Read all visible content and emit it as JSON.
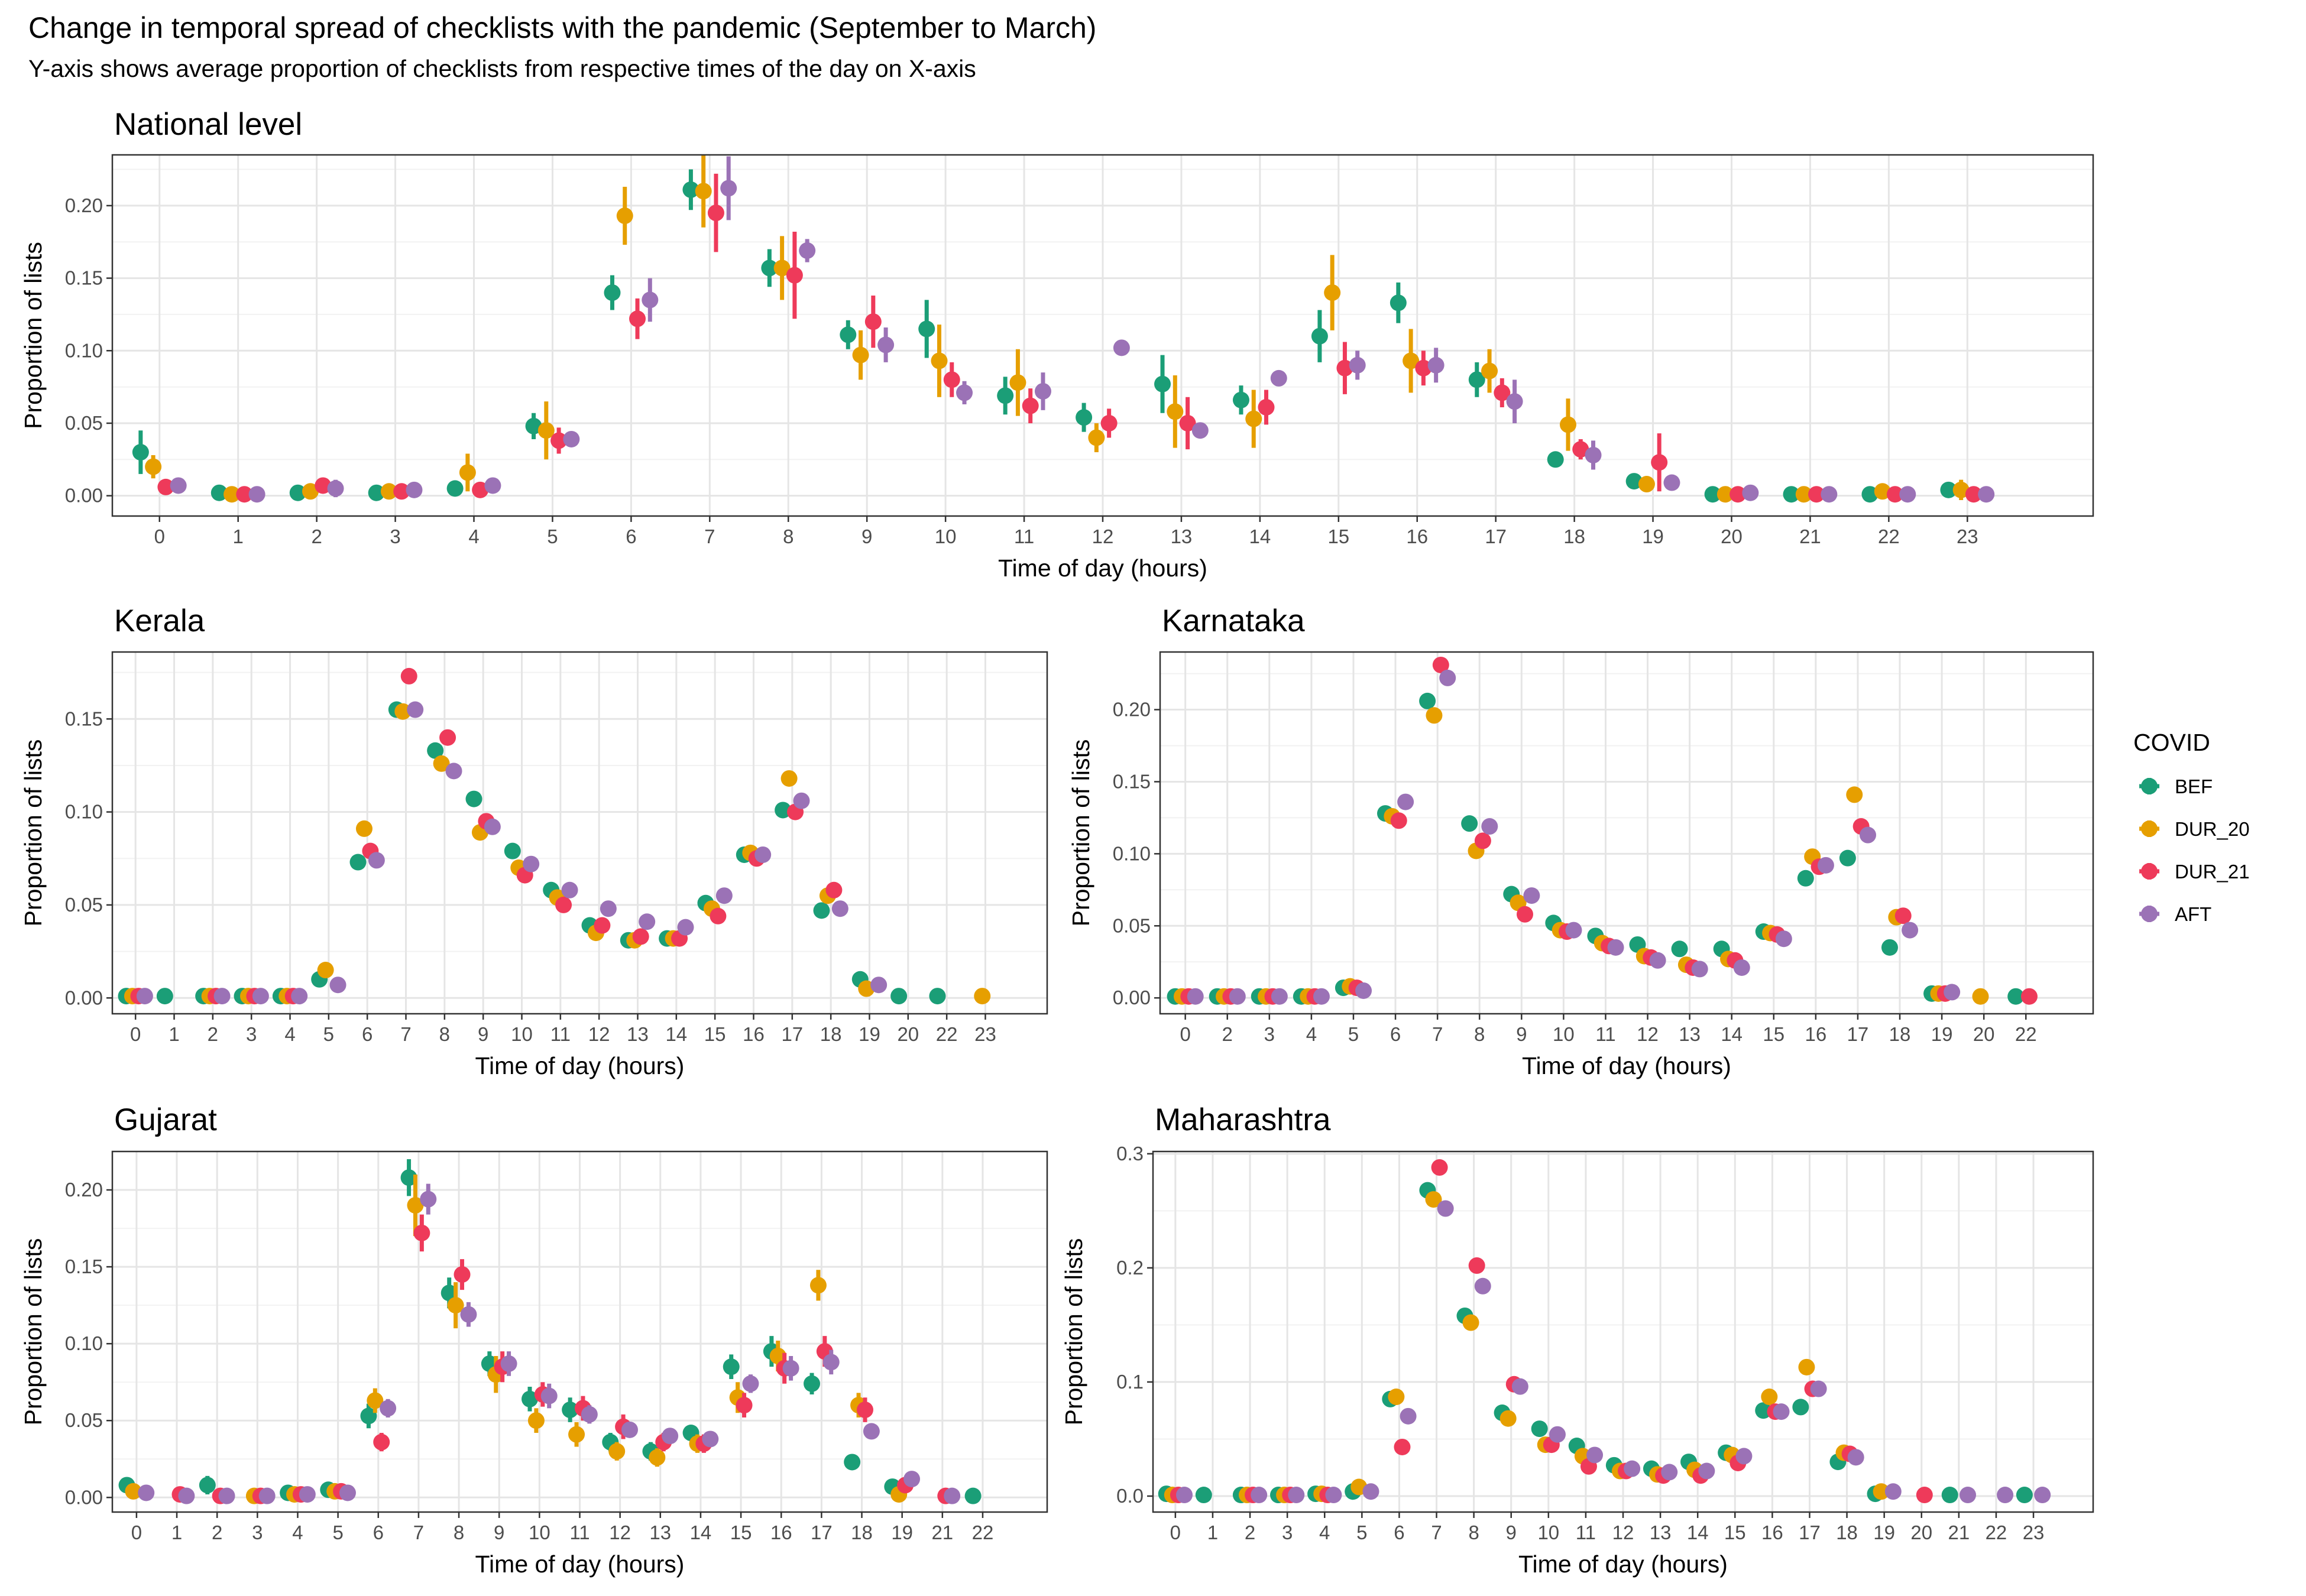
{
  "title": "Change in temporal spread of checklists with the pandemic (September to March)",
  "subtitle": "Y-axis shows average proportion of checklists from respective times of the day on X-axis",
  "legend": {
    "title": "COVID",
    "items": [
      {
        "label": "BEF",
        "color": "#1b9e77"
      },
      {
        "label": "DUR_20",
        "color": "#e69f00"
      },
      {
        "label": "DUR_21",
        "color": "#ee3a5a"
      },
      {
        "label": "AFT",
        "color": "#9b72b6"
      }
    ]
  },
  "chart_data": [
    {
      "type": "scatter",
      "title": "National level",
      "xlabel": "Time of day (hours)",
      "ylabel": "Proportion of lists",
      "categories": [
        "0",
        "1",
        "2",
        "3",
        "4",
        "5",
        "6",
        "7",
        "8",
        "9",
        "10",
        "11",
        "12",
        "13",
        "14",
        "15",
        "16",
        "17",
        "18",
        "19",
        "20",
        "21",
        "22",
        "23"
      ],
      "yticks": [
        "0.00",
        "0.05",
        "0.10",
        "0.15",
        "0.20"
      ],
      "ylim": [
        -0.014,
        0.235
      ],
      "error_bars": true,
      "series": [
        {
          "name": "BEF",
          "values": [
            0.03,
            0.002,
            0.002,
            0.002,
            0.005,
            0.048,
            0.14,
            0.211,
            0.157,
            0.111,
            0.115,
            0.069,
            0.054,
            0.077,
            0.066,
            0.11,
            0.133,
            0.08,
            0.025,
            0.01,
            0.001,
            0.001,
            0.001,
            0.004
          ],
          "errors": [
            0.015,
            0.002,
            0.002,
            0.002,
            0.002,
            0.009,
            0.012,
            0.014,
            0.013,
            0.01,
            0.02,
            0.013,
            0.01,
            0.02,
            0.01,
            0.018,
            0.014,
            0.012,
            0.003,
            0.003,
            0.001,
            0.001,
            0.001,
            0.005
          ]
        },
        {
          "name": "DUR_20",
          "values": [
            0.02,
            0.001,
            0.003,
            0.003,
            0.016,
            0.045,
            0.193,
            0.21,
            0.157,
            0.097,
            0.093,
            0.078,
            0.04,
            0.058,
            0.053,
            0.14,
            0.093,
            0.086,
            0.049,
            0.008,
            0.001,
            0.001,
            0.003,
            0.004
          ],
          "errors": [
            0.008,
            0.002,
            0.004,
            0.002,
            0.013,
            0.02,
            0.02,
            0.025,
            0.022,
            0.017,
            0.025,
            0.023,
            0.01,
            0.025,
            0.02,
            0.026,
            0.022,
            0.015,
            0.018,
            0.004,
            0.001,
            0.001,
            0.003,
            0.007
          ]
        },
        {
          "name": "DUR_21",
          "values": [
            0.006,
            0.001,
            0.007,
            0.003,
            0.004,
            0.038,
            0.122,
            0.195,
            0.152,
            0.12,
            0.08,
            0.062,
            0.05,
            0.05,
            0.061,
            0.088,
            0.088,
            0.071,
            0.032,
            0.023,
            0.001,
            0.001,
            0.001,
            0.001
          ],
          "errors": [
            0.003,
            0.001,
            0.004,
            0.002,
            0.003,
            0.009,
            0.014,
            0.027,
            0.03,
            0.018,
            0.012,
            0.012,
            0.01,
            0.018,
            0.012,
            0.018,
            0.012,
            0.01,
            0.007,
            0.02,
            0.001,
            0.001,
            0.001,
            0.001
          ]
        },
        {
          "name": "AFT",
          "values": [
            0.007,
            0.001,
            0.005,
            0.004,
            0.007,
            0.039,
            0.135,
            0.212,
            0.169,
            0.104,
            0.071,
            0.072,
            0.102,
            0.045,
            0.081,
            0.09,
            0.09,
            0.065,
            0.028,
            0.009,
            0.002,
            0.001,
            0.001,
            0.001
          ],
          "errors": [
            0.002,
            0.001,
            0.006,
            0.002,
            0.002,
            0.005,
            0.015,
            0.022,
            0.008,
            0.012,
            0.008,
            0.013,
            0.003,
            0.005,
            0.003,
            0.01,
            0.012,
            0.015,
            0.01,
            0.003,
            0.001,
            0.001,
            0.001,
            0.001
          ]
        }
      ]
    },
    {
      "type": "scatter",
      "title": "Kerala",
      "xlabel": "Time of day (hours)",
      "ylabel": "Proportion of lists",
      "categories": [
        "0",
        "1",
        "2",
        "3",
        "4",
        "5",
        "6",
        "7",
        "8",
        "9",
        "10",
        "11",
        "12",
        "13",
        "14",
        "15",
        "16",
        "17",
        "18",
        "19",
        "20",
        "22",
        "23"
      ],
      "yticks": [
        "0.00",
        "0.05",
        "0.10",
        "0.15"
      ],
      "ylim": [
        -0.0085,
        0.186
      ],
      "error_bars": false,
      "series": [
        {
          "name": "BEF",
          "values": [
            0.001,
            0.001,
            0.001,
            0.001,
            0.001,
            0.01,
            0.073,
            0.155,
            0.133,
            0.107,
            0.079,
            0.058,
            0.039,
            0.031,
            0.032,
            0.051,
            0.077,
            0.101,
            0.047,
            0.01,
            0.001,
            0.001,
            null
          ]
        },
        {
          "name": "DUR_20",
          "values": [
            0.001,
            null,
            0.001,
            0.001,
            0.001,
            0.015,
            0.091,
            0.154,
            0.126,
            0.089,
            0.07,
            0.054,
            0.035,
            0.031,
            0.032,
            0.048,
            0.078,
            0.118,
            0.055,
            0.005,
            null,
            null,
            0.001
          ]
        },
        {
          "name": "DUR_21",
          "values": [
            0.001,
            null,
            0.001,
            0.001,
            0.001,
            null,
            0.079,
            0.173,
            0.14,
            0.095,
            0.066,
            0.05,
            0.039,
            0.033,
            0.032,
            0.044,
            0.075,
            0.1,
            0.058,
            null,
            null,
            null,
            null
          ]
        },
        {
          "name": "AFT",
          "values": [
            0.001,
            null,
            0.001,
            0.001,
            0.001,
            0.007,
            0.074,
            0.155,
            0.122,
            0.092,
            0.072,
            0.058,
            0.048,
            0.041,
            0.038,
            0.055,
            0.077,
            0.106,
            0.048,
            0.007,
            null,
            null,
            null
          ]
        }
      ]
    },
    {
      "type": "scatter",
      "title": "Karnataka",
      "xlabel": "Time of day (hours)",
      "ylabel": "Proportion of lists",
      "categories": [
        "0",
        "2",
        "3",
        "4",
        "5",
        "6",
        "7",
        "8",
        "9",
        "10",
        "11",
        "12",
        "13",
        "14",
        "15",
        "16",
        "17",
        "18",
        "19",
        "20",
        "22"
      ],
      "yticks": [
        "0.00",
        "0.05",
        "0.10",
        "0.15",
        "0.20"
      ],
      "ylim": [
        -0.011,
        0.24
      ],
      "error_bars": false,
      "series": [
        {
          "name": "BEF",
          "values": [
            0.001,
            0.001,
            0.001,
            0.001,
            0.007,
            0.128,
            0.206,
            0.121,
            0.072,
            0.052,
            0.043,
            0.037,
            0.034,
            0.034,
            0.046,
            0.083,
            0.097,
            0.035,
            0.003,
            null,
            0.001
          ]
        },
        {
          "name": "DUR_20",
          "values": [
            0.001,
            0.001,
            0.001,
            0.001,
            0.008,
            0.126,
            0.196,
            0.102,
            0.066,
            0.047,
            0.038,
            0.029,
            0.023,
            0.027,
            0.045,
            0.098,
            0.141,
            0.056,
            0.003,
            0.001,
            null
          ]
        },
        {
          "name": "DUR_21",
          "values": [
            0.001,
            0.001,
            0.001,
            0.001,
            0.007,
            0.123,
            0.231,
            0.109,
            0.058,
            0.046,
            0.036,
            0.028,
            0.021,
            0.026,
            0.044,
            0.091,
            0.119,
            0.057,
            0.003,
            null,
            0.001
          ]
        },
        {
          "name": "AFT",
          "values": [
            0.001,
            0.001,
            0.001,
            0.001,
            0.005,
            0.136,
            0.222,
            0.119,
            0.071,
            0.047,
            0.035,
            0.026,
            0.02,
            0.021,
            0.041,
            0.092,
            0.113,
            0.047,
            0.004,
            null,
            null
          ]
        }
      ]
    },
    {
      "type": "scatter",
      "title": "Gujarat",
      "xlabel": "Time of day (hours)",
      "ylabel": "Proportion of lists",
      "categories": [
        "0",
        "1",
        "2",
        "3",
        "4",
        "5",
        "6",
        "7",
        "8",
        "9",
        "10",
        "11",
        "12",
        "13",
        "14",
        "15",
        "16",
        "17",
        "18",
        "19",
        "21",
        "22"
      ],
      "yticks": [
        "0.00",
        "0.05",
        "0.10",
        "0.15",
        "0.20"
      ],
      "ylim": [
        -0.0095,
        0.225
      ],
      "error_bars": true,
      "series": [
        {
          "name": "BEF",
          "values": [
            0.008,
            null,
            0.008,
            null,
            0.003,
            0.005,
            0.053,
            0.208,
            0.133,
            0.087,
            0.064,
            0.057,
            0.036,
            0.03,
            0.042,
            0.085,
            0.095,
            0.074,
            0.023,
            0.007,
            null,
            0.001
          ],
          "errors": [
            0.002,
            null,
            0.006,
            null,
            0.001,
            0.001,
            0.008,
            0.012,
            0.01,
            0.008,
            0.008,
            0.008,
            0.006,
            0.006,
            0.005,
            0.008,
            0.01,
            0.007,
            0.003,
            0.002,
            null,
            0.001
          ]
        },
        {
          "name": "DUR_20",
          "values": [
            0.004,
            null,
            null,
            0.001,
            0.002,
            0.004,
            0.063,
            0.19,
            0.125,
            0.08,
            0.05,
            0.041,
            0.03,
            0.026,
            0.035,
            0.065,
            0.092,
            0.138,
            0.06,
            0.002,
            null,
            null
          ],
          "errors": [
            0.002,
            null,
            null,
            0.001,
            0.002,
            0.002,
            0.008,
            0.02,
            0.015,
            0.012,
            0.008,
            0.008,
            0.006,
            0.006,
            0.006,
            0.01,
            0.01,
            0.01,
            0.008,
            0.002,
            null,
            null
          ]
        },
        {
          "name": "DUR_21",
          "values": [
            null,
            0.002,
            0.001,
            0.001,
            0.002,
            0.004,
            0.036,
            0.172,
            0.145,
            0.085,
            0.067,
            0.058,
            0.046,
            0.036,
            0.035,
            0.06,
            0.084,
            0.095,
            0.057,
            0.008,
            0.001,
            null
          ],
          "errors": [
            null,
            0.001,
            0.001,
            0.001,
            0.001,
            0.002,
            0.006,
            0.012,
            0.01,
            0.01,
            0.008,
            0.008,
            0.008,
            0.006,
            0.006,
            0.008,
            0.01,
            0.01,
            0.008,
            0.002,
            0.001,
            null
          ]
        },
        {
          "name": "AFT",
          "values": [
            0.003,
            0.001,
            0.001,
            0.001,
            0.002,
            0.003,
            0.058,
            0.194,
            0.119,
            0.087,
            0.066,
            0.054,
            0.044,
            0.04,
            0.038,
            0.074,
            0.084,
            0.088,
            0.043,
            0.012,
            0.001,
            null
          ],
          "errors": [
            0.001,
            0.001,
            0.001,
            0.001,
            0.001,
            0.001,
            0.006,
            0.01,
            0.008,
            0.008,
            0.008,
            0.006,
            0.004,
            0.004,
            0.004,
            0.006,
            0.008,
            0.008,
            0.004,
            0.002,
            0.001,
            null
          ]
        }
      ]
    },
    {
      "type": "scatter",
      "title": "Maharashtra",
      "xlabel": "Time of day (hours)",
      "ylabel": "Proportion of lists",
      "categories": [
        "0",
        "1",
        "2",
        "3",
        "4",
        "5",
        "6",
        "7",
        "8",
        "9",
        "10",
        "11",
        "12",
        "13",
        "14",
        "15",
        "16",
        "17",
        "18",
        "19",
        "20",
        "21",
        "22",
        "23"
      ],
      "yticks": [
        "0.0",
        "0.1",
        "0.2",
        "0.3"
      ],
      "ylim": [
        -0.014,
        0.302
      ],
      "error_bars": false,
      "series": [
        {
          "name": "BEF",
          "values": [
            0.002,
            0.001,
            0.001,
            0.001,
            0.002,
            0.004,
            0.085,
            0.268,
            0.158,
            0.073,
            0.059,
            0.044,
            0.027,
            0.024,
            0.03,
            0.038,
            0.075,
            0.078,
            0.03,
            0.002,
            null,
            0.001,
            null,
            0.001
          ]
        },
        {
          "name": "DUR_20",
          "values": [
            0.001,
            null,
            0.001,
            0.001,
            0.002,
            0.008,
            0.087,
            0.26,
            0.152,
            0.068,
            0.045,
            0.035,
            0.022,
            0.019,
            0.023,
            0.036,
            0.087,
            0.113,
            0.038,
            0.004,
            null,
            null,
            null,
            null
          ]
        },
        {
          "name": "DUR_21",
          "values": [
            0.001,
            null,
            0.001,
            0.001,
            0.001,
            null,
            0.043,
            0.288,
            0.202,
            0.098,
            0.045,
            0.026,
            0.022,
            0.018,
            0.018,
            0.029,
            0.074,
            0.094,
            0.037,
            null,
            0.001,
            null,
            null,
            null
          ]
        },
        {
          "name": "AFT",
          "values": [
            0.001,
            null,
            0.001,
            0.001,
            0.001,
            0.004,
            0.07,
            0.252,
            0.184,
            0.096,
            0.054,
            0.036,
            0.024,
            0.021,
            0.022,
            0.035,
            0.074,
            0.094,
            0.034,
            0.004,
            null,
            0.001,
            0.001,
            0.001
          ]
        }
      ]
    }
  ]
}
